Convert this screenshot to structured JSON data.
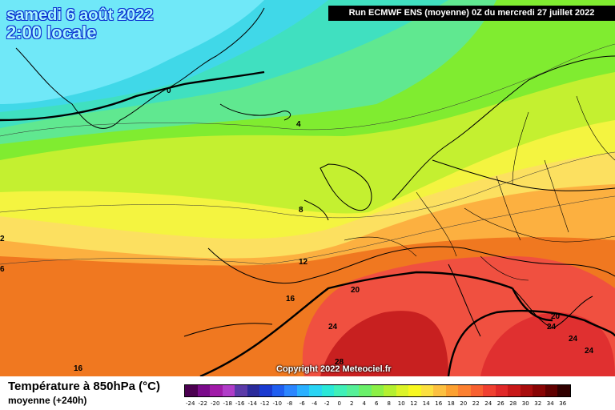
{
  "map": {
    "date_line": "samedi 6 août 2022",
    "time_line": "2:00 locale",
    "run_banner": "Run ECMWF ENS (moyenne) 0Z du mercredi 27 juillet 2022",
    "copyright": "Copyright 2022 Meteociel.fr",
    "isotherm_labels": [
      "0",
      "4",
      "8",
      "12",
      "16",
      "20",
      "24",
      "28",
      "16",
      "24",
      "20",
      "24",
      "24",
      "6",
      "2"
    ]
  },
  "legend": {
    "title": "Température à 850hPa (°C)",
    "subtitle": "moyenne   (+240h)",
    "ticks": [
      "-24",
      "-22",
      "-20",
      "-18",
      "-16",
      "-14",
      "-12",
      "-10",
      "-8",
      "-6",
      "-4",
      "-2",
      "0",
      "2",
      "4",
      "6",
      "8",
      "10",
      "12",
      "14",
      "16",
      "18",
      "20",
      "22",
      "24",
      "26",
      "28",
      "30",
      "32",
      "34",
      "36"
    ],
    "colors": [
      "#4b0050",
      "#7a0a8a",
      "#a01aa8",
      "#b03cc8",
      "#5b3aa8",
      "#2a2a9a",
      "#1a3ad0",
      "#1f5ef0",
      "#2b86ff",
      "#2ab0ff",
      "#29d4f4",
      "#2ae8d8",
      "#40f0b8",
      "#55f098",
      "#6af06a",
      "#8cf046",
      "#b4f030",
      "#dcf428",
      "#f8f820",
      "#fce040",
      "#fcc040",
      "#fca030",
      "#fc8030",
      "#f86030",
      "#f04030",
      "#e02828",
      "#c81818",
      "#a80c0c",
      "#880404",
      "#600000",
      "#300000"
    ]
  }
}
